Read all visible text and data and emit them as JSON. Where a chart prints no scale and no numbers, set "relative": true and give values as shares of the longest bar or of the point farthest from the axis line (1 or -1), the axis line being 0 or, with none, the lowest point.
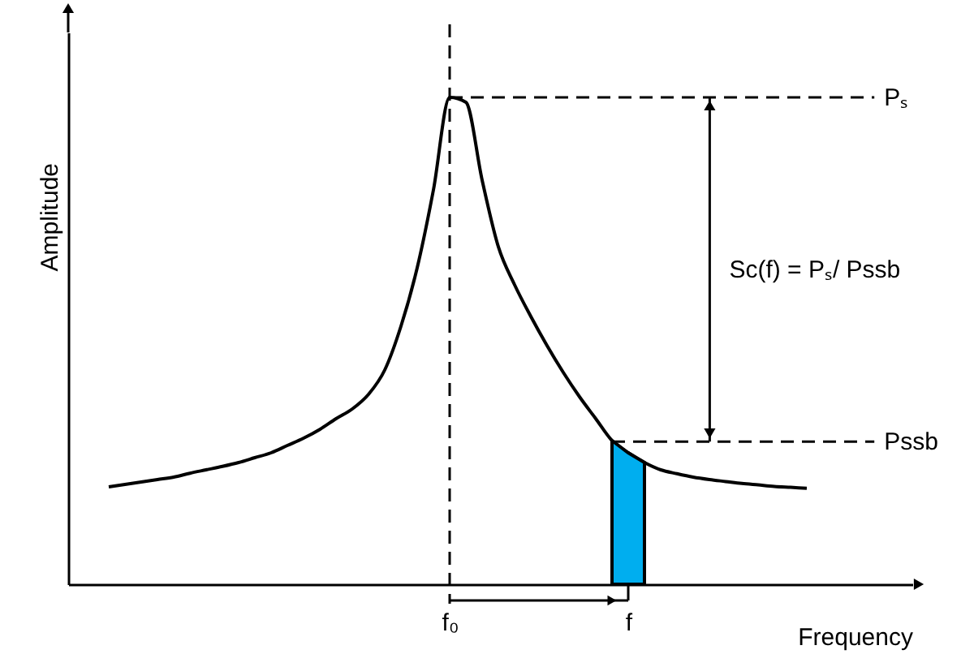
{
  "chart_data": {
    "type": "line",
    "relative": true,
    "xlabel": "Frequency",
    "ylabel": "Amplitude",
    "tick_labels": "x",
    "grid": false,
    "categories": [
      null,
      null,
      null,
      null,
      null,
      null,
      null,
      null,
      null,
      null,
      null,
      null,
      null,
      null,
      null,
      null,
      null,
      null,
      null,
      null,
      null,
      null,
      null,
      "f₀",
      null,
      null,
      null,
      null,
      null,
      null,
      null,
      null,
      null,
      null,
      "f",
      null,
      null,
      null,
      null,
      null,
      null,
      null,
      null,
      null,
      null,
      null,
      null,
      null,
      null,
      null,
      null,
      null
    ],
    "series": [
      {
        "color": "#000000",
        "values": [
          null,
          null,
          0.2,
          0.205,
          0.21,
          0.215,
          0.22,
          0.228,
          0.235,
          0.242,
          0.25,
          0.26,
          0.27,
          0.285,
          0.3,
          0.318,
          0.34,
          0.36,
          0.39,
          0.44,
          0.53,
          0.65,
          0.81,
          1.0,
          0.99,
          0.83,
          0.693,
          0.615,
          0.55,
          0.49,
          0.435,
          0.385,
          0.34,
          0.295,
          0.27,
          0.25,
          0.235,
          0.227,
          0.22,
          0.215,
          0.211,
          0.207,
          0.204,
          0.201,
          0.199,
          0.197,
          null,
          null,
          null,
          null,
          null,
          null
        ]
      },
      {
        "type": "area",
        "color": "#00aeef",
        "values": [
          null,
          null,
          null,
          null,
          null,
          null,
          null,
          null,
          null,
          null,
          null,
          null,
          null,
          null,
          null,
          null,
          null,
          null,
          null,
          null,
          null,
          null,
          null,
          null,
          null,
          null,
          null,
          null,
          null,
          null,
          null,
          null,
          null,
          0.295,
          0.27,
          0.25,
          null,
          null,
          null,
          null,
          null,
          null,
          null,
          null,
          null,
          null,
          null,
          null,
          null,
          null,
          null,
          null
        ]
      }
    ],
    "ref_lines": [
      {
        "axis": "x",
        "value": "f₀",
        "line_style": "dashed"
      },
      {
        "axis": "y",
        "value": 1.0,
        "label": "Pₛ",
        "line_style": "dashed"
      },
      {
        "axis": "y",
        "value": 0.293,
        "label": "Pssb",
        "line_style": "dashed"
      }
    ],
    "annotations": [
      "Sc(f) = Pₛ/ Pssb"
    ]
  }
}
